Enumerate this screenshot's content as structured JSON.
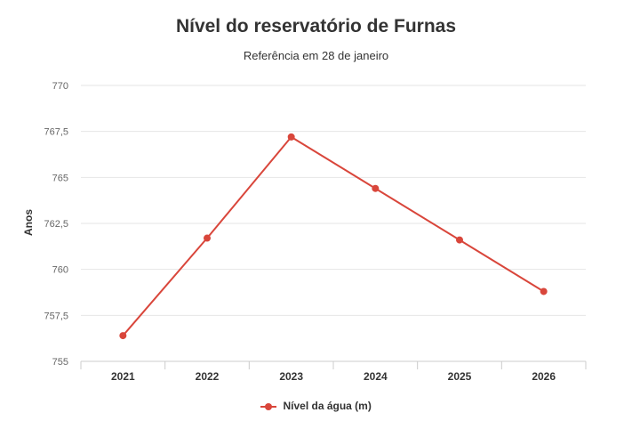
{
  "chart_data": {
    "type": "line",
    "title": "Nível do reservatório de Furnas",
    "subtitle": "Referência em 28 de janeiro",
    "ylabel": "Anos",
    "xlabel": "",
    "categories": [
      "2021",
      "2022",
      "2023",
      "2024",
      "2025",
      "2026"
    ],
    "series": [
      {
        "name": "Nível da água (m)",
        "values": [
          756.4,
          761.7,
          767.2,
          764.4,
          761.6,
          758.8
        ],
        "color": "#d9463b"
      }
    ],
    "ylim": [
      755,
      770
    ],
    "yticks": [
      755,
      757.5,
      760,
      762.5,
      765,
      767.5,
      770
    ],
    "ytick_labels": [
      "755",
      "757,5",
      "760",
      "762,5",
      "765",
      "767,5",
      "770"
    ],
    "grid": true,
    "legend": "bottom-center"
  }
}
